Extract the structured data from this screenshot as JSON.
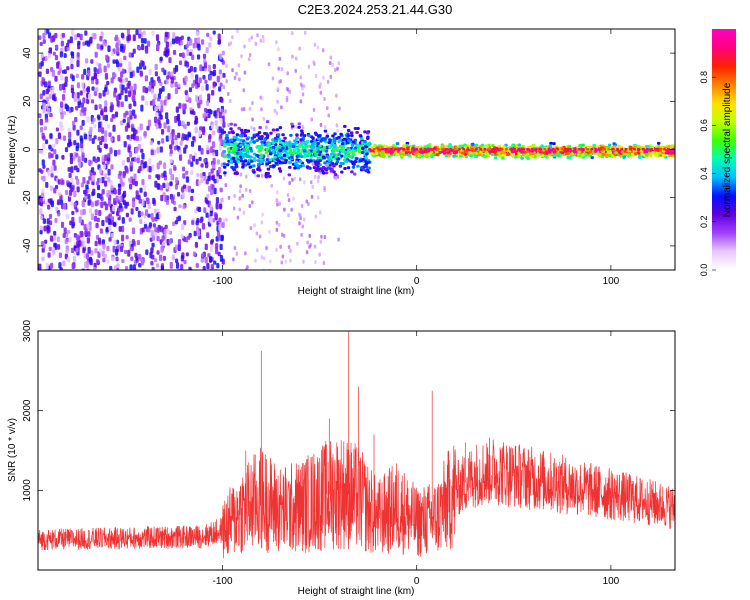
{
  "title": "C2E3.2024.253.21.44.G30",
  "chart_data": [
    {
      "type": "heatmap",
      "xlabel": "Height of straight line (km)",
      "ylabel": "Frequency (Hz)",
      "xlim": [
        -195,
        133
      ],
      "ylim": [
        -50,
        50
      ],
      "x_ticks": [
        -100,
        0,
        100
      ],
      "x_tick_labels": [
        "-100",
        "0",
        "100"
      ],
      "y_ticks": [
        -40,
        -20,
        0,
        20,
        40
      ],
      "y_tick_labels": [
        "-40",
        "-20",
        "0",
        "20",
        "40"
      ],
      "colorbar": {
        "label": "Normalized spectral amplitude",
        "range": [
          0,
          1
        ],
        "ticks": [
          0,
          0.2,
          0.4,
          0.6,
          0.8
        ],
        "tick_labels": [
          "0.0",
          "0.2",
          "0.4",
          "0.6",
          "0.8"
        ],
        "colors": [
          "#ffffff",
          "#e8c8ff",
          "#a040ff",
          "#6000e0",
          "#0010ff",
          "#00c0ff",
          "#00ffb0",
          "#40ff00",
          "#c0ff00",
          "#ffe000",
          "#ff8000",
          "#ff2000",
          "#ff0080",
          "#ff00c0"
        ]
      },
      "regions": [
        {
          "x_range": [
            -195,
            -100
          ],
          "freq_spread_hz": 50,
          "amplitude": 0.22,
          "description_level": "broadband"
        },
        {
          "x_range": [
            -100,
            -25
          ],
          "freq_spread_hz": 8,
          "amplitude": 0.45
        },
        {
          "x_range": [
            -25,
            133
          ],
          "freq_spread_hz": 2,
          "amplitude": 0.9
        }
      ]
    },
    {
      "type": "line",
      "xlabel": "Height of straight line (km)",
      "ylabel": "SNR (10 * v/v)",
      "xlim": [
        -195,
        133
      ],
      "ylim": [
        0,
        3000
      ],
      "x_ticks": [
        -100,
        0,
        100
      ],
      "x_tick_labels": [
        "-100",
        "0",
        "100"
      ],
      "y_ticks": [
        1000,
        2000,
        3000
      ],
      "y_tick_labels": [
        "1000",
        "2000",
        "3000"
      ],
      "color": "#ee3333",
      "envelope": {
        "x": [
          -195,
          -150,
          -110,
          -100,
          -90,
          -80,
          -70,
          -60,
          -50,
          -40,
          -30,
          -20,
          -10,
          0,
          10,
          20,
          30,
          40,
          60,
          80,
          100,
          120,
          133
        ],
        "y": [
          380,
          400,
          420,
          500,
          750,
          900,
          750,
          800,
          900,
          1000,
          900,
          650,
          800,
          600,
          650,
          1000,
          1200,
          1250,
          1150,
          1050,
          950,
          850,
          780
        ]
      },
      "spikes": [
        {
          "x": -88,
          "y": 1500
        },
        {
          "x": -80,
          "y": 2750
        },
        {
          "x": -45,
          "y": 1900
        },
        {
          "x": -35,
          "y": 3000
        },
        {
          "x": -30,
          "y": 2300
        },
        {
          "x": -22,
          "y": 1700
        },
        {
          "x": 8,
          "y": 2250
        },
        {
          "x": 25,
          "y": 1600
        }
      ]
    }
  ]
}
